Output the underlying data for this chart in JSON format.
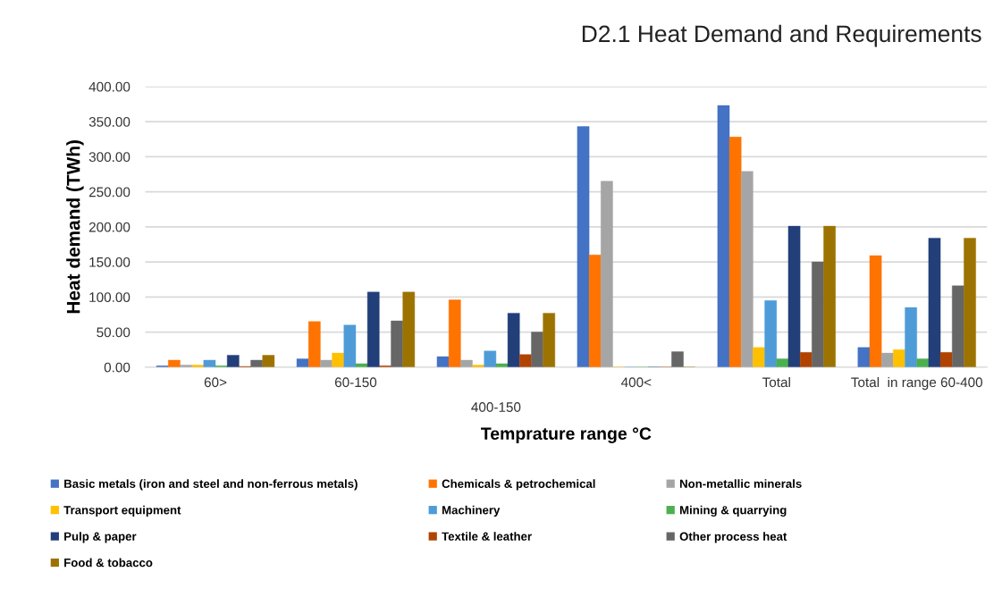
{
  "chart_data": {
    "type": "bar",
    "title": "D2.1 Heat Demand and Requirements",
    "xlabel": "Temprature range °C",
    "ylabel": "Heat demand (TWh)",
    "categories": [
      "60>",
      "60-150",
      "400-150",
      "400<",
      "Total",
      "Total  in range 60-400"
    ],
    "series": [
      {
        "name": "Basic metals (iron and steel and non-ferrous metals)",
        "color": "#4472c4",
        "values": [
          2,
          12,
          15,
          343,
          373,
          28
        ]
      },
      {
        "name": "Chemicals & petrochemical",
        "color": "#ff7300",
        "values": [
          10,
          65,
          96,
          160,
          328,
          159
        ]
      },
      {
        "name": "Non-metallic minerals",
        "color": "#a5a5a5",
        "values": [
          3,
          10,
          10,
          265,
          279,
          20
        ]
      },
      {
        "name": "Transport equipment",
        "color": "#ffc000",
        "values": [
          3,
          20,
          3,
          0,
          28,
          25
        ]
      },
      {
        "name": "Machinery",
        "color": "#4e9bd8",
        "values": [
          10,
          60,
          23,
          0,
          95,
          85
        ]
      },
      {
        "name": "Mining & quarrying",
        "color": "#4cb050",
        "values": [
          2,
          5,
          5,
          0,
          12,
          12
        ]
      },
      {
        "name": "Pulp & paper",
        "color": "#233f7a",
        "values": [
          17,
          107,
          77,
          0,
          201,
          184
        ]
      },
      {
        "name": "Textile & leather",
        "color": "#b04300",
        "values": [
          1,
          2,
          18,
          0,
          21,
          21
        ]
      },
      {
        "name": "Other process heat",
        "color": "#666666",
        "values": [
          10,
          66,
          50,
          22,
          150,
          116
        ]
      },
      {
        "name": "Food & tobacco",
        "color": "#9c7300",
        "values": [
          17,
          107,
          77,
          0,
          201,
          184
        ]
      }
    ],
    "ylim": [
      0,
      400
    ],
    "yticks": [
      {
        "value": 0,
        "label": "0.00"
      },
      {
        "value": 50,
        "label": "50.00"
      },
      {
        "value": 100,
        "label": "100.00"
      },
      {
        "value": 150,
        "label": "150.00"
      },
      {
        "value": 200,
        "label": "200.00"
      },
      {
        "value": 250,
        "label": "250.00"
      },
      {
        "value": 300,
        "label": "300.00"
      },
      {
        "value": 350,
        "label": "350.00"
      },
      {
        "value": 400,
        "label": "400.00"
      }
    ],
    "grid": "y",
    "legend": "bottom"
  }
}
